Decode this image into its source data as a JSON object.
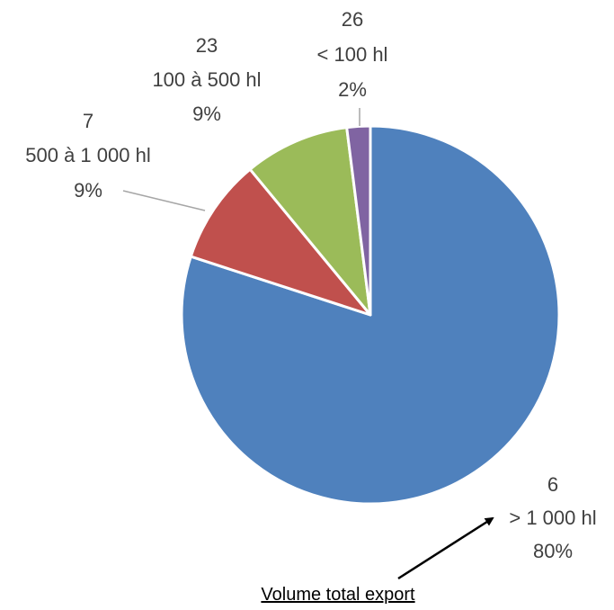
{
  "chart_data": {
    "type": "pie",
    "title": "",
    "start_angle_deg": 0,
    "direction": "clockwise",
    "slices": [
      {
        "count": "6",
        "category": "> 1 000 hl",
        "percent_label": "80%",
        "value": 80,
        "color": "#4f81bd"
      },
      {
        "count": "7",
        "category": "500 à 1 000 hl",
        "percent_label": "9%",
        "value": 9,
        "color": "#c0504d"
      },
      {
        "count": "23",
        "category": "100 à 500 hl",
        "percent_label": "9%",
        "value": 9,
        "color": "#9bbb59"
      },
      {
        "count": "26",
        "category": "< 100 hl",
        "percent_label": "2%",
        "value": 2,
        "color": "#8064a2"
      }
    ],
    "annotation": {
      "text": "Volume total export",
      "points_to": "> 1 000 hl"
    }
  }
}
